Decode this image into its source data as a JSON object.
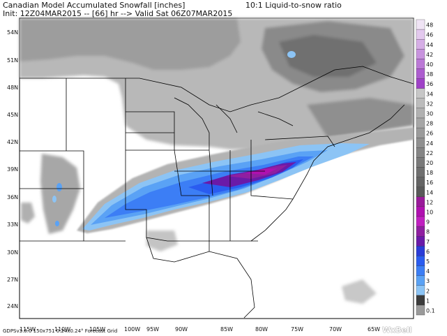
{
  "header": {
    "title": "Canadian Model Accumulated Snowfall [inches]",
    "ratio": "10:1 Liquid-to-snow ratio",
    "init": "Init: 12Z04MAR2015 -- [66] hr --> Valid Sat 06Z07MAR2015"
  },
  "map": {
    "lat_labels": [
      "54N",
      "51N",
      "48N",
      "45N",
      "42N",
      "39N",
      "36N",
      "33N",
      "30N",
      "27N",
      "24N"
    ],
    "lon_labels": [
      "115W",
      "110W",
      "105W",
      "100W",
      "95W",
      "90W",
      "85W",
      "80W",
      "75W",
      "70W",
      "65W"
    ]
  },
  "colorbar": {
    "labels": [
      "48",
      "46",
      "44",
      "42",
      "40",
      "38",
      "36",
      "34",
      "32",
      "30",
      "28",
      "26",
      "24",
      "22",
      "20",
      "18",
      "16",
      "14",
      "12",
      "10",
      "9",
      "8",
      "7",
      "6",
      "5",
      "4",
      "3",
      "2",
      "1",
      "0.1"
    ],
    "colors": [
      "#f0e4f5",
      "#e3c9ee",
      "#d6aee6",
      "#c893de",
      "#bb78d6",
      "#ad5dcf",
      "#9f42c7",
      "#c7c7c7",
      "#bcbcbc",
      "#b1b1b1",
      "#a6a6a6",
      "#9b9b9b",
      "#909090",
      "#858585",
      "#7a7a7a",
      "#6f6f6f",
      "#646464",
      "#595959",
      "#9a1a9a",
      "#b010b0",
      "#c020c0",
      "#8f1fa0",
      "#6a1aa8",
      "#2a3cd8",
      "#2a5cf0",
      "#3c7ef5",
      "#5aa2f5",
      "#8cc4f5",
      "#3c3c3c",
      "#9a9a9a"
    ]
  },
  "footer": {
    "left": "GDPSv3.0.0  150x751  0.24x0.24° Forecast Grid",
    "brand": "WxBell"
  }
}
